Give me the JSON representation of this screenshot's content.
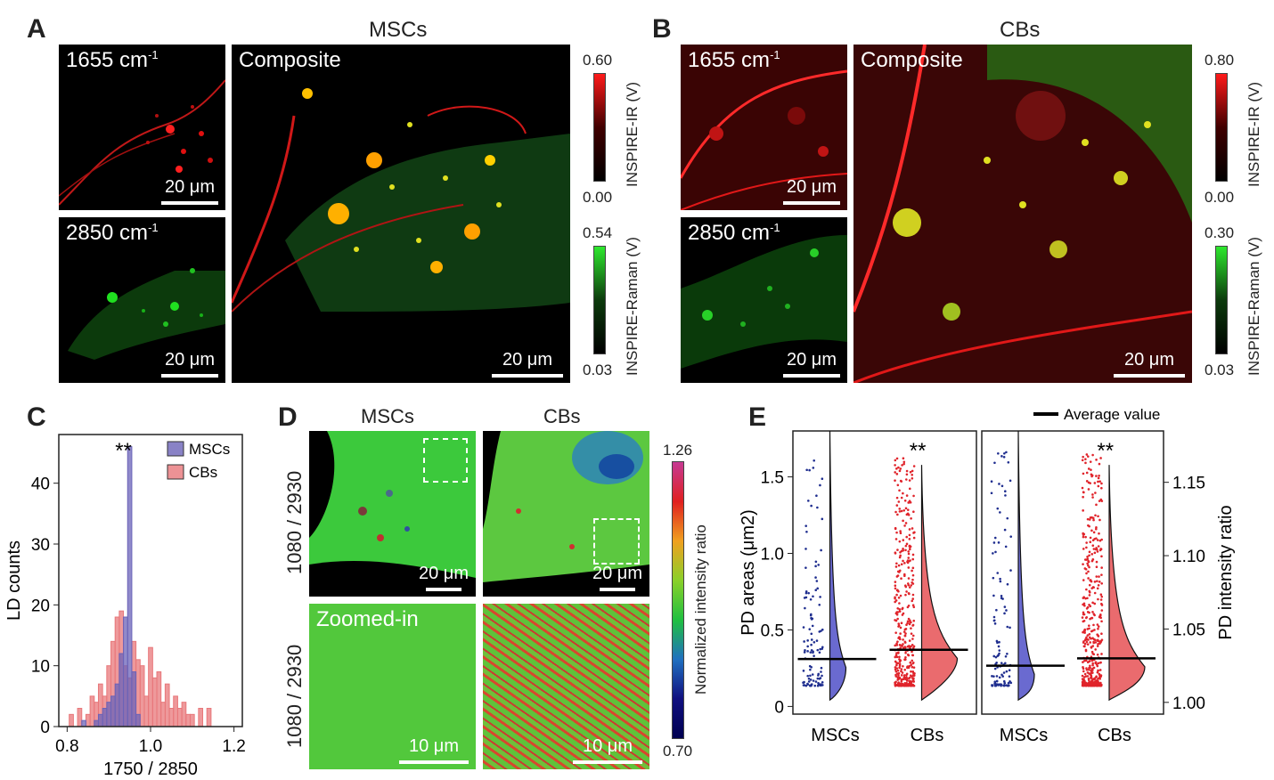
{
  "panelA": {
    "letter": "A",
    "title": "MSCs",
    "img1_label": "1655 cm",
    "img1_sup": "-1",
    "img2_label": "2850 cm",
    "img2_sup": "-1",
    "composite_label": "Composite",
    "scale_label": "20 μm",
    "ir_max": "0.60",
    "ir_min": "0.00",
    "ir_label": "INSPIRE-IR (V)",
    "raman_max": "0.54",
    "raman_min": "0.03",
    "raman_label": "INSPIRE-Raman (V)"
  },
  "panelB": {
    "letter": "B",
    "title": "CBs",
    "img1_label": "1655 cm",
    "img1_sup": "-1",
    "img2_label": "2850 cm",
    "img2_sup": "-1",
    "composite_label": "Composite",
    "scale_label": "20 μm",
    "ir_max": "0.80",
    "ir_min": "0.00",
    "ir_label": "INSPIRE-IR (V)",
    "raman_max": "0.30",
    "raman_min": "0.03",
    "raman_label": "INSPIRE-Raman (V)"
  },
  "panelD": {
    "letter": "D",
    "col1": "MSCs",
    "col2": "CBs",
    "row_label": "1080 / 2930",
    "zoom_label": "Zoomed-in",
    "scale_top": "20 μm",
    "scale_bottom": "10 μm",
    "cb_max": "1.26",
    "cb_min": "0.70",
    "cb_label": "Normalized intensity ratio"
  },
  "panelC_letter": "C",
  "panelE_letter": "E",
  "chart_data": [
    {
      "type": "bar",
      "panel": "C",
      "xlabel": "1750 / 2850",
      "ylabel": "LD counts",
      "xlim": [
        0.78,
        1.22
      ],
      "ylim": [
        0,
        48
      ],
      "xticks": [
        "0.8",
        "1.0",
        "1.2"
      ],
      "yticks": [
        "0",
        "10",
        "20",
        "30",
        "40"
      ],
      "annotation": "**",
      "legend_position": "top-right",
      "bin_width": 0.01,
      "series": [
        {
          "name": "MSCs",
          "color": "#6b63b8",
          "bins": [
            0.84,
            0.87,
            0.88,
            0.89,
            0.9,
            0.91,
            0.92,
            0.93,
            0.94,
            0.95,
            0.96,
            0.97
          ],
          "values": [
            1,
            1,
            2,
            3,
            4,
            5,
            7,
            12,
            18,
            46,
            9,
            2
          ]
        },
        {
          "name": "CBs",
          "color": "#e8777a",
          "bins": [
            0.81,
            0.83,
            0.85,
            0.86,
            0.87,
            0.88,
            0.89,
            0.9,
            0.91,
            0.92,
            0.93,
            0.94,
            0.95,
            0.96,
            0.97,
            0.98,
            0.99,
            1.0,
            1.01,
            1.02,
            1.03,
            1.04,
            1.05,
            1.06,
            1.07,
            1.08,
            1.09,
            1.1,
            1.12,
            1.14
          ],
          "values": [
            2,
            3,
            2,
            5,
            4,
            7,
            5,
            10,
            14,
            18,
            19,
            10,
            8,
            14,
            11,
            10,
            5,
            13,
            8,
            9,
            4,
            7,
            3,
            5,
            3,
            4,
            2,
            2,
            3,
            3
          ]
        }
      ]
    },
    {
      "type": "scatter",
      "panel": "E",
      "legend": "Average value",
      "left": {
        "ylabel": "PD areas (μm2)",
        "ylim": [
          -0.05,
          1.8
        ],
        "yticks": [
          "0",
          "0.5",
          "1.0",
          "1.5"
        ],
        "categories": [
          "MSCs",
          "CBs"
        ],
        "averages": [
          0.31,
          0.37
        ],
        "annotation": "**"
      },
      "right": {
        "ylabel": "PD intensity ratio",
        "ylim": [
          0.992,
          1.185
        ],
        "yticks": [
          "1.00",
          "1.05",
          "1.10",
          "1.15"
        ],
        "categories": [
          "MSCs",
          "CBs"
        ],
        "averages": [
          1.025,
          1.03
        ],
        "annotation": "**"
      },
      "colors": {
        "MSCs": "#1f2e8f",
        "CBs": "#e0242b",
        "MSCs_fill": "#6a6ad0",
        "CBs_fill": "#ea6b6e"
      }
    }
  ]
}
